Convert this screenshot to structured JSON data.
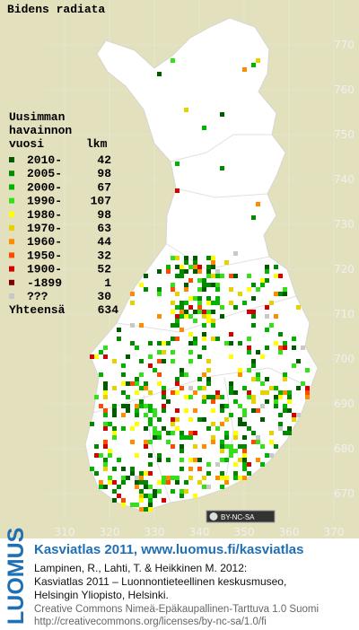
{
  "title": "Bidens radiata",
  "legend": {
    "header": [
      "Uusimman",
      "havainnon",
      "vuosi"
    ],
    "count_header": "lkm",
    "entries": [
      {
        "label": "2010-",
        "count": 42,
        "color": "#005a00"
      },
      {
        "label": "2005-",
        "count": 98,
        "color": "#008a00"
      },
      {
        "label": "2000-",
        "count": 67,
        "color": "#00b400"
      },
      {
        "label": "1990-",
        "count": 107,
        "color": "#33e01a"
      },
      {
        "label": "1980-",
        "count": 98,
        "color": "#ffff00"
      },
      {
        "label": "1970-",
        "count": 63,
        "color": "#e6d200"
      },
      {
        "label": "1960-",
        "count": 44,
        "color": "#ff8c00"
      },
      {
        "label": "1950-",
        "count": 32,
        "color": "#ff4a00"
      },
      {
        "label": "1900-",
        "count": 52,
        "color": "#d40000"
      },
      {
        "label": "-1899",
        "count": 1,
        "color": "#7a0000"
      },
      {
        "label": "???",
        "count": 30,
        "color": "#c8c8c8"
      }
    ],
    "total_label": "Yhteensä",
    "total": 634
  },
  "grid_y": [
    770,
    760,
    750,
    740,
    730,
    720,
    710,
    700,
    690,
    680,
    670
  ],
  "grid_x": [
    310,
    320,
    330,
    340,
    350,
    360,
    370
  ],
  "license_badge": "BY-NC-SA",
  "footer": {
    "brand": "LUOMUS",
    "heading": "Kasviatlas 2011, www.luomus.fi/kasviatlas",
    "citation": [
      "Lampinen, R., Lahti, T. & Heikkinen M. 2012:",
      "Kasviatlas 2011 – Luonnontieteellinen keskusmuseo,",
      "Helsingin Yliopisto, Helsinki."
    ],
    "license": [
      "Creative Commons Nimeä-Epäkaupallinen-Tarttuva 1.0 Suomi",
      "http://creativecommons.org/licenses/by-nc-sa/1.0/fi"
    ]
  }
}
